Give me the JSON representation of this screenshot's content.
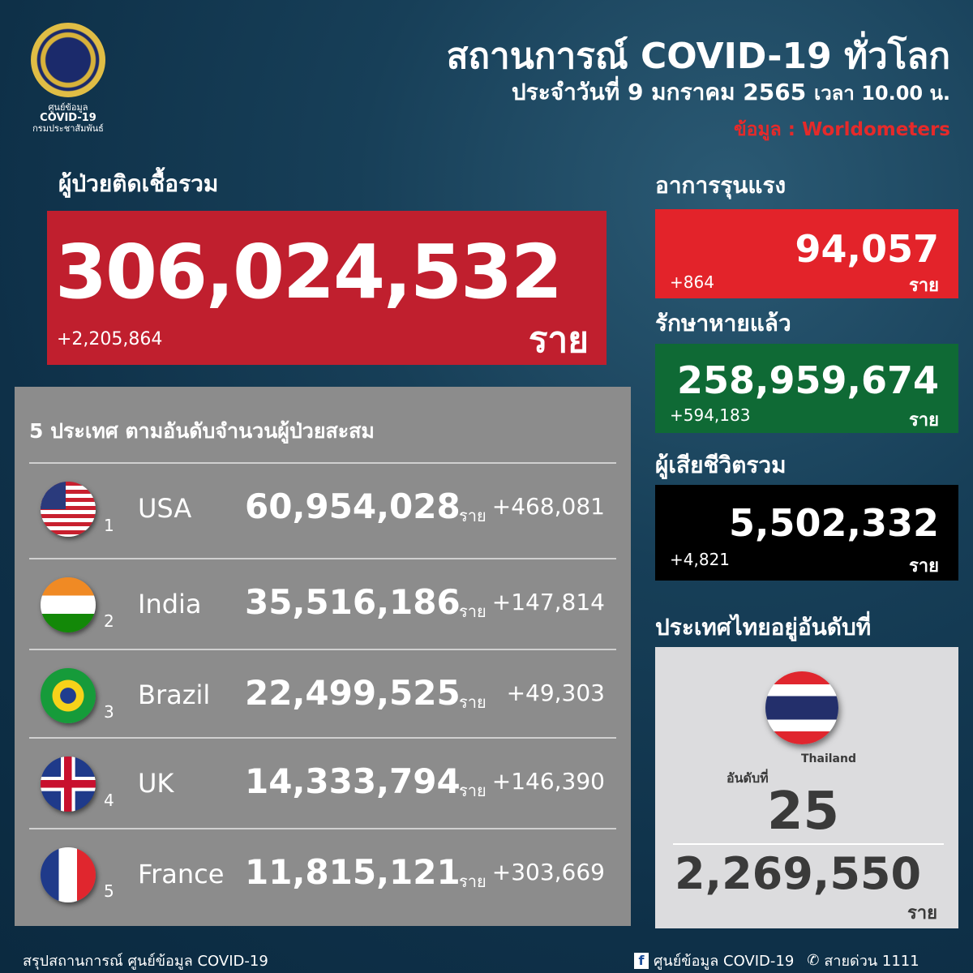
{
  "logo": {
    "line1": "ศูนย์ข้อมูล",
    "line2": "COVID-19",
    "line3": "กรมประชาสัมพันธ์"
  },
  "header": {
    "title": "สถานการณ์ COVID-19 ทั่วโลก",
    "date": "ประจำวันที่ 9 มกราคม 2565",
    "time": "เวลา 10.00 น.",
    "source": "ข้อมูล : Worldometers"
  },
  "total": {
    "label": "ผู้ป่วยติดเชื้อรวม",
    "value": "306,024,532",
    "increase": "+2,205,864",
    "unit": "ราย"
  },
  "severe": {
    "label": "อาการรุนแรง",
    "value": "94,057",
    "increase": "+864",
    "unit": "ราย"
  },
  "recovered": {
    "label": "รักษาหายแล้ว",
    "value": "258,959,674",
    "increase": "+594,183",
    "unit": "ราย"
  },
  "deaths": {
    "label": "ผู้เสียชีวิตรวม",
    "value": "5,502,332",
    "increase": "+4,821",
    "unit": "ราย"
  },
  "top5": {
    "title": "5 ประเทศ ตามอันดับจำนวนผู้ป่วยสะสม",
    "unit": "ราย",
    "rows": [
      {
        "rank": "1",
        "country": "USA",
        "value": "60,954,028",
        "increase": "+468,081",
        "flag": "usa-flag"
      },
      {
        "rank": "2",
        "country": "India",
        "value": "35,516,186",
        "increase": "+147,814",
        "flag": "india-flag"
      },
      {
        "rank": "3",
        "country": "Brazil",
        "value": "22,499,525",
        "increase": "+49,303",
        "flag": "brazil-flag"
      },
      {
        "rank": "4",
        "country": "UK",
        "value": "14,333,794",
        "increase": "+146,390",
        "flag": "uk-flag"
      },
      {
        "rank": "5",
        "country": "France",
        "value": "11,815,121",
        "increase": "+303,669",
        "flag": "france-flag"
      }
    ]
  },
  "thailand": {
    "label": "ประเทศไทยอยู่อันดับที่",
    "country": "Thailand",
    "rank_label": "อันดับที่",
    "rank": "25",
    "value": "2,269,550",
    "unit": "ราย"
  },
  "footer": {
    "left": "สรุปสถานการณ์ ศูนย์ข้อมูล COVID-19",
    "facebook": "ศูนย์ข้อมูล COVID-19",
    "hotline": "สายด่วน 1111"
  }
}
